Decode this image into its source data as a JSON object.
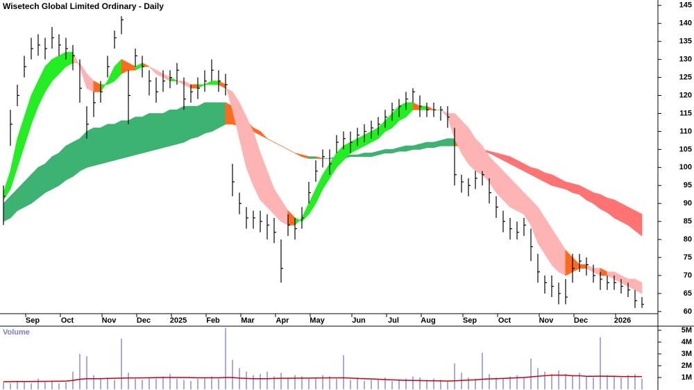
{
  "chart_data": [
    {
      "type": "ohlc",
      "title": "Wisetech Global Limited Ordinary - Daily",
      "categories": [
        null,
        null,
        null,
        null,
        "Sep",
        null,
        null,
        null,
        null,
        "Oct",
        null,
        null,
        null,
        null,
        null,
        "Nov",
        null,
        null,
        null,
        null,
        "Dec",
        null,
        null,
        null,
        null,
        "2025",
        null,
        null,
        null,
        null,
        "Feb",
        null,
        null,
        null,
        null,
        "Mar",
        null,
        null,
        null,
        null,
        "Apr",
        null,
        null,
        null,
        null,
        "May",
        null,
        null,
        null,
        null,
        null,
        "Jun",
        null,
        null,
        null,
        null,
        "Jul",
        null,
        null,
        null,
        null,
        "Aug",
        null,
        null,
        null,
        null,
        null,
        "Sep",
        null,
        null,
        null,
        null,
        "Oct",
        null,
        null,
        null,
        null,
        null,
        "Nov",
        null,
        null,
        null,
        null,
        "Dec",
        null,
        null,
        null,
        null,
        null,
        "2026",
        null,
        null,
        null
      ],
      "high": [
        95,
        116,
        123,
        131,
        136,
        137,
        136,
        139,
        137,
        136,
        134,
        130,
        117,
        121,
        124,
        131,
        138,
        142,
        127,
        133,
        131,
        127,
        125,
        127,
        127,
        129,
        125,
        123,
        125,
        127,
        130,
        127,
        126,
        101,
        93,
        89,
        88,
        88,
        87,
        86,
        80,
        87,
        86,
        89,
        96,
        102,
        105,
        105,
        109,
        110,
        110,
        111,
        112,
        113,
        114,
        116,
        118,
        119,
        121,
        122,
        120,
        118,
        118,
        117,
        117,
        111,
        98,
        97,
        99,
        99,
        97,
        92,
        88,
        86,
        85,
        86,
        83,
        76,
        70,
        70,
        68,
        69,
        76,
        76,
        75,
        73,
        71,
        70,
        70,
        69,
        68,
        66,
        64
      ],
      "low": [
        84,
        106,
        117,
        125,
        130,
        131,
        130,
        133,
        131,
        130,
        127,
        118,
        108,
        114,
        118,
        125,
        133,
        137,
        112,
        128,
        125,
        120,
        118,
        121,
        122,
        123,
        116,
        118,
        119,
        121,
        124,
        121,
        120,
        92,
        87,
        83,
        83,
        82,
        80,
        79,
        68,
        81,
        80,
        83,
        90,
        96,
        100,
        98,
        104,
        105,
        104,
        106,
        107,
        108,
        109,
        111,
        113,
        114,
        116,
        118,
        114,
        114,
        114,
        113,
        111,
        95,
        93,
        92,
        94,
        95,
        90,
        86,
        82,
        80,
        80,
        81,
        74,
        68,
        65,
        64,
        62,
        62,
        68,
        71,
        70,
        68,
        66,
        66,
        66,
        65,
        64,
        61,
        61
      ],
      "close": [
        92,
        112,
        120,
        128,
        133,
        134,
        133,
        136,
        134,
        133,
        131,
        122,
        112,
        118,
        121,
        128,
        136,
        141,
        120,
        131,
        128,
        124,
        121,
        124,
        125,
        127,
        119,
        121,
        122,
        124,
        127,
        124,
        123,
        96,
        90,
        86,
        86,
        85,
        84,
        82,
        72,
        84,
        83,
        86,
        93,
        99,
        103,
        101,
        107,
        108,
        107,
        109,
        110,
        111,
        112,
        114,
        116,
        117,
        119,
        121,
        117,
        116,
        116,
        116,
        114,
        98,
        96,
        95,
        97,
        98,
        93,
        89,
        85,
        83,
        82,
        84,
        78,
        71,
        68,
        67,
        65,
        64,
        72,
        74,
        73,
        70,
        69,
        68,
        68,
        67,
        66,
        63,
        62
      ],
      "bar_color": "#000000",
      "ribbons": [
        {
          "fast": [
            90,
            92,
            94,
            96,
            98,
            100,
            101,
            103,
            104,
            106,
            107,
            108,
            110,
            111,
            111,
            112,
            112,
            113,
            113,
            114,
            114,
            115,
            115,
            115,
            116,
            116,
            117,
            117,
            117,
            118,
            118,
            118,
            118,
            117,
            114,
            113,
            111,
            110,
            108,
            107,
            106,
            105,
            104,
            103.5,
            103,
            103,
            102.5,
            102.5,
            103,
            103,
            103.5,
            103.5,
            104,
            104,
            104.5,
            105,
            105,
            105.5,
            106,
            106,
            106.5,
            107,
            107,
            107.5,
            108,
            108,
            107,
            106,
            105,
            104.5,
            104,
            103,
            102,
            101,
            100,
            99,
            98,
            97,
            96,
            95,
            94.5,
            94,
            93,
            92.5,
            91,
            90,
            88.5,
            87.5,
            86,
            85,
            84,
            82.5,
            81
          ],
          "slow": [
            85,
            86,
            88,
            89,
            90,
            91.5,
            93,
            94,
            95,
            96.5,
            97.5,
            99,
            100,
            100.5,
            101,
            101.5,
            102,
            102.5,
            103,
            103.5,
            104,
            104.5,
            105,
            105.5,
            106,
            106.5,
            107,
            108,
            108.5,
            109.5,
            110,
            111,
            112,
            112,
            111.5,
            111,
            110,
            109,
            108,
            107,
            106,
            105,
            104,
            103,
            102.5,
            102.5,
            102.5,
            102.5,
            102.5,
            102.5,
            103,
            103,
            103,
            103,
            103.5,
            104,
            104,
            104.5,
            104.5,
            105,
            105,
            105.5,
            105.5,
            106,
            106,
            106,
            106,
            106,
            105.5,
            105,
            104.5,
            104,
            103.5,
            103,
            102,
            101,
            100,
            99.5,
            98.5,
            98,
            97,
            96,
            95.5,
            95,
            94,
            93,
            92.5,
            91.5,
            91,
            90,
            89,
            88,
            87
          ],
          "up_color": "#3cb371",
          "turn_color": "#ff6a1f",
          "down_color": "#ff7373"
        },
        {
          "fast": [
            93,
            99,
            108,
            114,
            120,
            124,
            128,
            130,
            131,
            132,
            132,
            128,
            122,
            121,
            121,
            124,
            128,
            130,
            129,
            128,
            129,
            128,
            126,
            125,
            124,
            124,
            123,
            122,
            122,
            123,
            124,
            124,
            123,
            116,
            108,
            100,
            95,
            91,
            89,
            87,
            85,
            84,
            84,
            86,
            90,
            94,
            98,
            101,
            104,
            106,
            107,
            108,
            109,
            110,
            111,
            113,
            115,
            117,
            118,
            118,
            117,
            117,
            116,
            116,
            114,
            108,
            104,
            101,
            99,
            98,
            96,
            93,
            91,
            89,
            88,
            87,
            84,
            79,
            76,
            73,
            71,
            70,
            71,
            72,
            72,
            71,
            70,
            70,
            69,
            68,
            67,
            66,
            65
          ],
          "slow": [
            91,
            94,
            100,
            106,
            112,
            117,
            121,
            124,
            126,
            128,
            129,
            129,
            126,
            124,
            123,
            123,
            124,
            126,
            127,
            127,
            128,
            128,
            127,
            126,
            125,
            124,
            124,
            123,
            123,
            123,
            123,
            123,
            122,
            121,
            118,
            114,
            110,
            104,
            99,
            94,
            91,
            88,
            86,
            85,
            87,
            90,
            94,
            97,
            100,
            102,
            104,
            105,
            106,
            107,
            108,
            110,
            111,
            113,
            114,
            116,
            116,
            116,
            116,
            116,
            115,
            115,
            113,
            111,
            108,
            106,
            103,
            101,
            99,
            97,
            95,
            93,
            91,
            89,
            86,
            83,
            80,
            77,
            75,
            73,
            73,
            72,
            72,
            71,
            71,
            70,
            69,
            69,
            68
          ],
          "up_color": "#22ee22",
          "turn_color": "#ff6a1f",
          "down_color": "#ffb4b4"
        }
      ],
      "ylim": [
        59.4,
        146.5
      ],
      "yticks": [
        60,
        65,
        70,
        75,
        80,
        85,
        90,
        95,
        100,
        105,
        110,
        115,
        120,
        125,
        130,
        135,
        140,
        145
      ]
    },
    {
      "type": "bar",
      "title": "Volume",
      "color": "#8c8cd8",
      "values": [
        600000,
        500000,
        700000,
        600000,
        500000,
        900000,
        600000,
        700000,
        500000,
        600000,
        1500000,
        3000000,
        2800000,
        1200000,
        900000,
        1000000,
        800000,
        4300000,
        1400000,
        900000,
        800000,
        1000000,
        900000,
        1100000,
        1300000,
        900000,
        800000,
        700000,
        900000,
        1000000,
        1100000,
        900000,
        5200000,
        2500000,
        1800000,
        1500000,
        1200000,
        1300000,
        1500000,
        1100000,
        1400000,
        1000000,
        1200000,
        1100000,
        900000,
        1000000,
        1200000,
        1100000,
        900000,
        2900000,
        800000,
        1000000,
        700000,
        800000,
        900000,
        1000000,
        700000,
        800000,
        900000,
        1100000,
        1000000,
        800000,
        900000,
        800000,
        700000,
        2200000,
        1400000,
        1000000,
        900000,
        3100000,
        1300000,
        1000000,
        900000,
        1100000,
        1200000,
        1000000,
        2600000,
        1800000,
        1500000,
        1300000,
        1600000,
        1300000,
        1200000,
        1400000,
        1100000,
        1000000,
        4400000,
        1200000,
        1100000,
        1000000,
        1200000,
        1300000,
        900000
      ],
      "average": {
        "color": "#cc0000",
        "values": [
          650000,
          650000,
          660000,
          660000,
          660000,
          670000,
          670000,
          680000,
          680000,
          700000,
          750000,
          850000,
          900000,
          900000,
          900000,
          920000,
          930000,
          950000,
          960000,
          960000,
          970000,
          980000,
          990000,
          1000000,
          1000000,
          1000000,
          1000000,
          990000,
          980000,
          980000,
          980000,
          980000,
          1000000,
          1000000,
          950000,
          920000,
          900000,
          900000,
          900000,
          920000,
          930000,
          930000,
          940000,
          950000,
          950000,
          960000,
          960000,
          970000,
          970000,
          980000,
          950000,
          920000,
          900000,
          880000,
          850000,
          820000,
          800000,
          780000,
          760000,
          750000,
          740000,
          730000,
          720000,
          710000,
          700000,
          720000,
          750000,
          780000,
          800000,
          850000,
          880000,
          900000,
          920000,
          950000,
          980000,
          1000000,
          1050000,
          1100000,
          1150000,
          1200000,
          1200000,
          1200000,
          1150000,
          1150000,
          1100000,
          1100000,
          1120000,
          1100000,
          1100000,
          1080000,
          1080000,
          1080000,
          1080000
        ]
      },
      "ylim": [
        0,
        5350000
      ],
      "yticks": [
        {
          "value": 1000000,
          "label": "1M"
        },
        {
          "value": 2000000,
          "label": "2M"
        },
        {
          "value": 3000000,
          "label": "3M"
        },
        {
          "value": 4000000,
          "label": "4M"
        },
        {
          "value": 5000000,
          "label": "5M"
        }
      ]
    }
  ]
}
